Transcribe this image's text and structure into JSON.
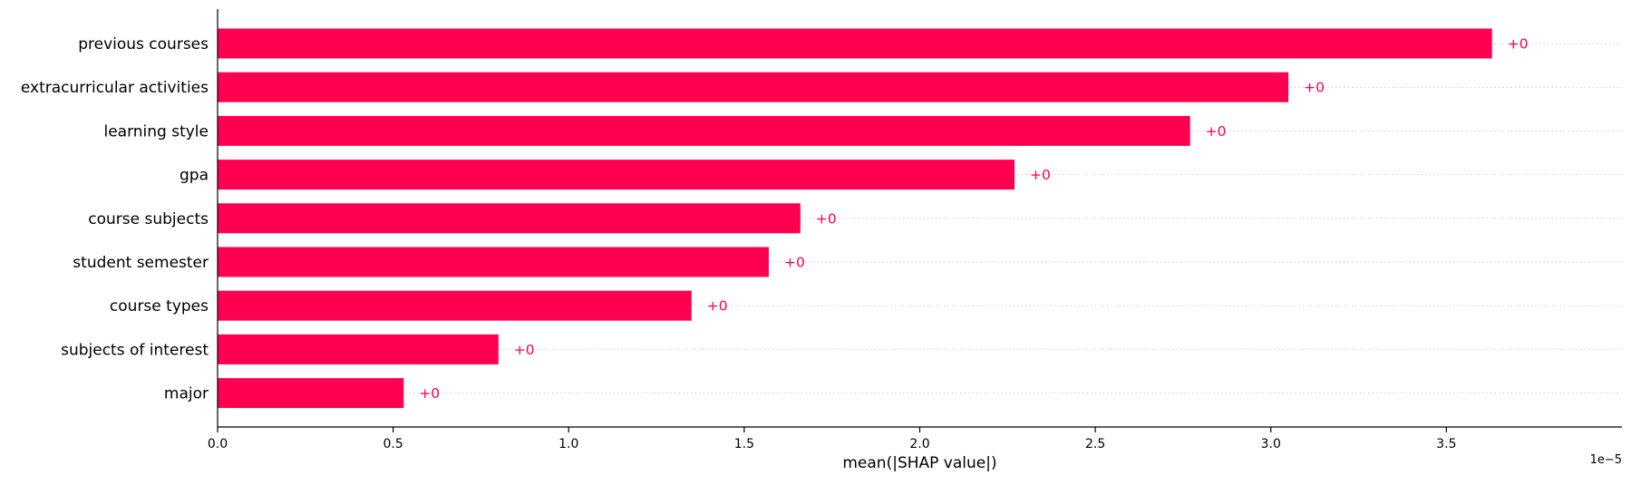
{
  "chart_data": {
    "type": "bar",
    "orientation": "horizontal",
    "categories": [
      "previous courses",
      "extracurricular activities",
      "learning style",
      "gpa",
      "course subjects",
      "student semester",
      "course types",
      "subjects of interest",
      "major"
    ],
    "values": [
      3.63,
      3.05,
      2.77,
      2.27,
      1.66,
      1.57,
      1.35,
      0.8,
      0.53
    ],
    "value_labels": [
      "+0",
      "+0",
      "+0",
      "+0",
      "+0",
      "+0",
      "+0",
      "+0",
      "+0"
    ],
    "xlabel": "mean(|SHAP value|)",
    "x_offset_label": "1e−5",
    "xlim": [
      0,
      4.0
    ],
    "xticks": [
      0.0,
      0.5,
      1.0,
      1.5,
      2.0,
      2.5,
      3.0,
      3.5
    ],
    "xtick_labels": [
      "0.0",
      "0.5",
      "1.0",
      "1.5",
      "2.0",
      "2.5",
      "3.0",
      "3.5"
    ],
    "grid": "dotted horizontal row guides",
    "colors": {
      "bar": "#ff0051",
      "value_label": "#ff0051",
      "axis": "#000000",
      "guide": "#cccccc"
    }
  }
}
